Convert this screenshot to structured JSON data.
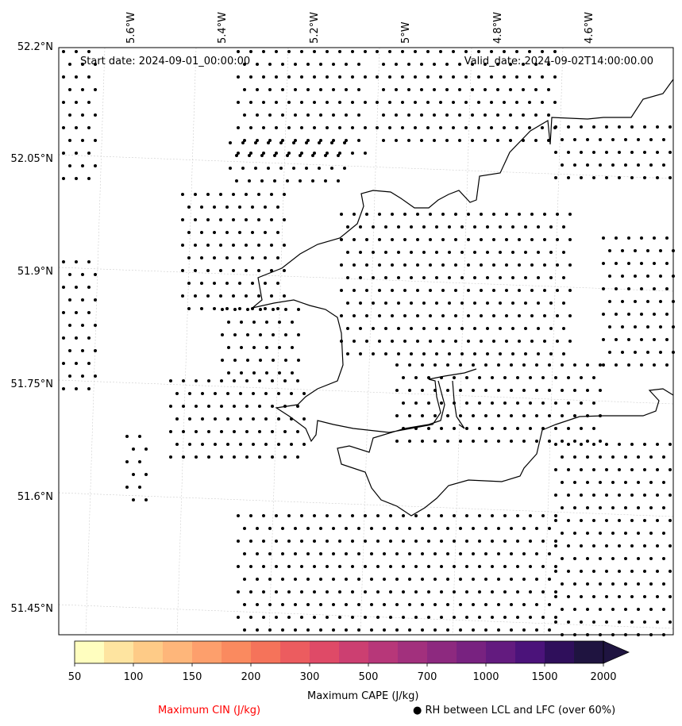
{
  "header": {
    "start_date": "Start date: 2024-09-01_00:00:00",
    "valid_date": "Valid_date: 2024-09-02T14:00:00.00"
  },
  "lat_labels": [
    "52.2°N",
    "52.05°N",
    "51.9°N",
    "51.75°N",
    "51.6°N",
    "51.45°N"
  ],
  "lon_labels": [
    "5.6°W",
    "5.4°W",
    "5.2°W",
    "5°W",
    "4.8°W",
    "4.6°W"
  ],
  "colorbar": {
    "ticks": [
      "50",
      "100",
      "150",
      "200",
      "300",
      "500",
      "700",
      "1000",
      "1500",
      "2000"
    ],
    "colors": [
      "#fffebf",
      "#fee4a0",
      "#fecb87",
      "#feb67a",
      "#fd9f6c",
      "#fa8a5f",
      "#f5735a",
      "#ec5c5f",
      "#df4a67",
      "#cc3f71",
      "#b73779",
      "#a2307d",
      "#8d297f",
      "#782280",
      "#631b7f",
      "#4b137a",
      "#2f0f5b",
      "#1f1440"
    ],
    "label": "Maximum CAPE (J/kg)"
  },
  "legend": {
    "cin_label": "Maximum CIN (J/kg)",
    "cin_color": "#ff0000",
    "rh_label": "● RH between LCL and LFC (over 60%)"
  }
}
